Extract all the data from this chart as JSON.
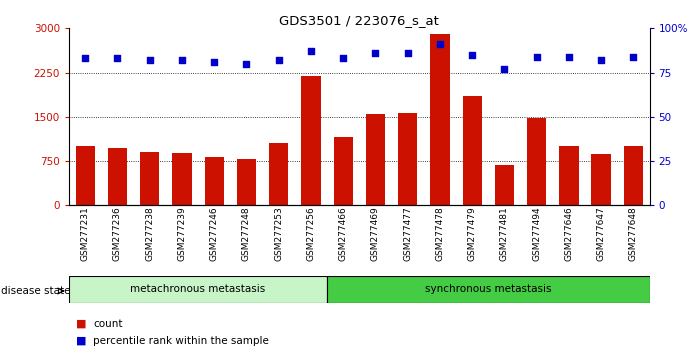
{
  "title": "GDS3501 / 223076_s_at",
  "samples": [
    "GSM277231",
    "GSM277236",
    "GSM277238",
    "GSM277239",
    "GSM277246",
    "GSM277248",
    "GSM277253",
    "GSM277256",
    "GSM277466",
    "GSM277469",
    "GSM277477",
    "GSM277478",
    "GSM277479",
    "GSM277481",
    "GSM277494",
    "GSM277646",
    "GSM277647",
    "GSM277648"
  ],
  "counts": [
    1000,
    980,
    900,
    880,
    820,
    790,
    1050,
    2200,
    1150,
    1550,
    1570,
    2900,
    1850,
    680,
    1480,
    1000,
    870,
    1000
  ],
  "percentile_ranks": [
    83,
    83,
    82,
    82,
    81,
    80,
    82,
    87,
    83,
    86,
    86,
    91,
    85,
    77,
    84,
    84,
    82,
    84
  ],
  "groups": [
    {
      "label": "metachronous metastasis",
      "start": 0,
      "end": 8,
      "color": "#c8f5c8"
    },
    {
      "label": "synchronous metastasis",
      "start": 8,
      "end": 18,
      "color": "#44cc44"
    }
  ],
  "bar_color": "#cc1100",
  "dot_color": "#0000cc",
  "left_yaxis": {
    "min": 0,
    "max": 3000,
    "ticks": [
      0,
      750,
      1500,
      2250,
      3000
    ],
    "color": "#cc1100"
  },
  "right_yaxis": {
    "min": 0,
    "max": 100,
    "ticks": [
      0,
      25,
      50,
      75,
      100
    ],
    "color": "#0000cc"
  },
  "grid_values": [
    750,
    1500,
    2250
  ],
  "legend": [
    {
      "label": "count",
      "color": "#cc1100"
    },
    {
      "label": "percentile rank within the sample",
      "color": "#0000cc"
    }
  ],
  "disease_state_label": "disease state",
  "background_color": "#ffffff"
}
